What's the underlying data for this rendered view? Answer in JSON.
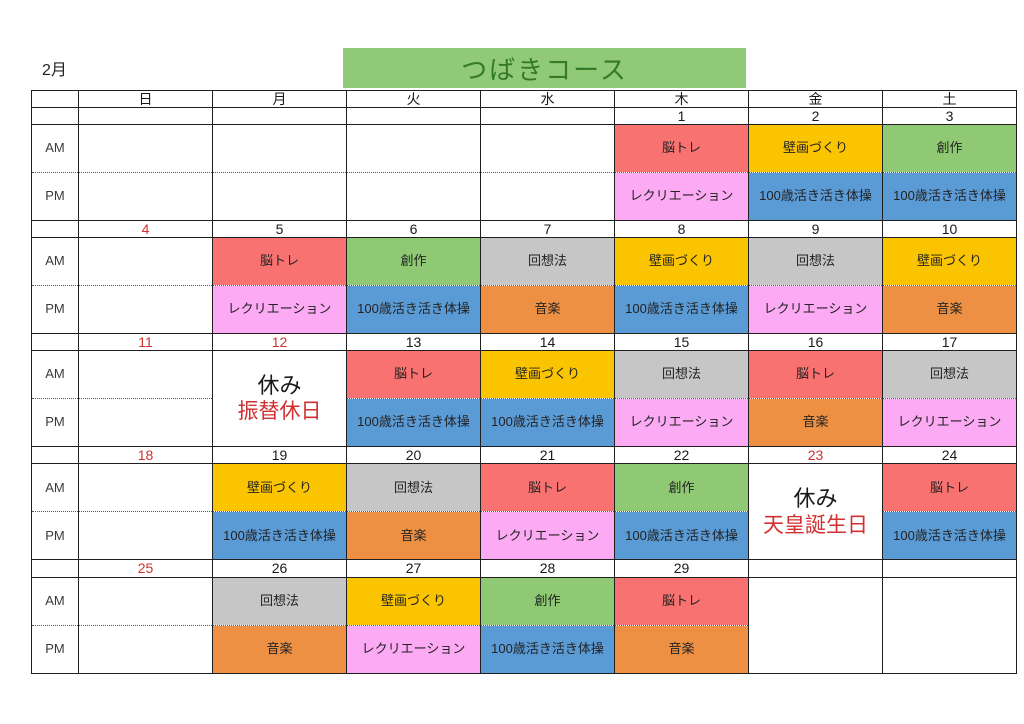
{
  "page": {
    "month_label": "2月",
    "course_title": "つばきコース"
  },
  "colors": {
    "title_banner_bg": "#90CA77",
    "title_text": "#35792B",
    "red_text": "#D03030",
    "border": "#1f1f1f"
  },
  "weekday_headers": [
    "日",
    "月",
    "火",
    "水",
    "木",
    "金",
    "土"
  ],
  "time_labels": [
    "AM",
    "PM"
  ],
  "activity_colors": {
    "脳トレ": "#F87272",
    "壁画づくり": "#FBC400",
    "創作": "#8FC973",
    "レクリエーション": "#FBAAF3",
    "100歳活き活き体操": "#5B9BD5",
    "回想法": "#C6C6C6",
    "音楽": "#ED9044"
  },
  "weeks": [
    {
      "dates": [
        {
          "label": "",
          "red": false
        },
        {
          "label": "",
          "red": false
        },
        {
          "label": "",
          "red": false
        },
        {
          "label": "",
          "red": false
        },
        {
          "label": "1",
          "red": false
        },
        {
          "label": "2",
          "red": false
        },
        {
          "label": "3",
          "red": false
        }
      ],
      "days": [
        {
          "am": null,
          "pm": null
        },
        {
          "am": null,
          "pm": null
        },
        {
          "am": null,
          "pm": null
        },
        {
          "am": null,
          "pm": null
        },
        {
          "am": "脳トレ",
          "pm": "レクリエーション"
        },
        {
          "am": "壁画づくり",
          "pm": "100歳活き活き体操"
        },
        {
          "am": "創作",
          "pm": "100歳活き活き体操"
        }
      ]
    },
    {
      "dates": [
        {
          "label": "4",
          "red": true
        },
        {
          "label": "5",
          "red": false
        },
        {
          "label": "6",
          "red": false
        },
        {
          "label": "7",
          "red": false
        },
        {
          "label": "8",
          "red": false
        },
        {
          "label": "9",
          "red": false
        },
        {
          "label": "10",
          "red": false
        }
      ],
      "days": [
        {
          "am": null,
          "pm": null
        },
        {
          "am": "脳トレ",
          "pm": "レクリエーション"
        },
        {
          "am": "創作",
          "pm": "100歳活き活き体操"
        },
        {
          "am": "回想法",
          "pm": "音楽"
        },
        {
          "am": "壁画づくり",
          "pm": "100歳活き活き体操"
        },
        {
          "am": "回想法",
          "pm": "レクリエーション"
        },
        {
          "am": "壁画づくり",
          "pm": "音楽"
        }
      ]
    },
    {
      "dates": [
        {
          "label": "11",
          "red": true
        },
        {
          "label": "12",
          "red": true
        },
        {
          "label": "13",
          "red": false
        },
        {
          "label": "14",
          "red": false
        },
        {
          "label": "15",
          "red": false
        },
        {
          "label": "16",
          "red": false
        },
        {
          "label": "17",
          "red": false
        }
      ],
      "days": [
        {
          "am": null,
          "pm": null
        },
        {
          "holiday": {
            "line1": "休み",
            "line2": "振替休日"
          }
        },
        {
          "am": "脳トレ",
          "pm": "100歳活き活き体操"
        },
        {
          "am": "壁画づくり",
          "pm": "100歳活き活き体操"
        },
        {
          "am": "回想法",
          "pm": "レクリエーション"
        },
        {
          "am": "脳トレ",
          "pm": "音楽"
        },
        {
          "am": "回想法",
          "pm": "レクリエーション"
        }
      ]
    },
    {
      "dates": [
        {
          "label": "18",
          "red": true
        },
        {
          "label": "19",
          "red": false
        },
        {
          "label": "20",
          "red": false
        },
        {
          "label": "21",
          "red": false
        },
        {
          "label": "22",
          "red": false
        },
        {
          "label": "23",
          "red": true
        },
        {
          "label": "24",
          "red": false
        }
      ],
      "days": [
        {
          "am": null,
          "pm": null
        },
        {
          "am": "壁画づくり",
          "pm": "100歳活き活き体操"
        },
        {
          "am": "回想法",
          "pm": "音楽"
        },
        {
          "am": "脳トレ",
          "pm": "レクリエーション"
        },
        {
          "am": "創作",
          "pm": "100歳活き活き体操"
        },
        {
          "holiday": {
            "line1": "休み",
            "line2": "天皇誕生日"
          }
        },
        {
          "am": "脳トレ",
          "pm": "100歳活き活き体操"
        }
      ]
    },
    {
      "dates": [
        {
          "label": "25",
          "red": true
        },
        {
          "label": "26",
          "red": false
        },
        {
          "label": "27",
          "red": false
        },
        {
          "label": "28",
          "red": false
        },
        {
          "label": "29",
          "red": false
        },
        {
          "label": "",
          "red": false
        },
        {
          "label": "",
          "red": false
        }
      ],
      "days": [
        {
          "am": null,
          "pm": null
        },
        {
          "am": "回想法",
          "pm": "音楽"
        },
        {
          "am": "壁画づくり",
          "pm": "レクリエーション"
        },
        {
          "am": "創作",
          "pm": "100歳活き活き体操"
        },
        {
          "am": "脳トレ",
          "pm": "音楽"
        },
        {
          "blank": true
        },
        {
          "blank": true
        }
      ]
    }
  ]
}
